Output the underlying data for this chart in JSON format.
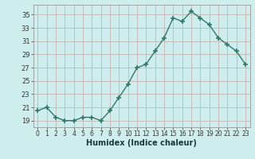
{
  "x": [
    0,
    1,
    2,
    3,
    4,
    5,
    6,
    7,
    8,
    9,
    10,
    11,
    12,
    13,
    14,
    15,
    16,
    17,
    18,
    19,
    20,
    21,
    22,
    23
  ],
  "y": [
    20.5,
    21.0,
    19.5,
    19.0,
    19.0,
    19.5,
    19.5,
    19.0,
    20.5,
    22.5,
    24.5,
    27.0,
    27.5,
    29.5,
    31.5,
    34.5,
    34.0,
    35.5,
    34.5,
    33.5,
    31.5,
    30.5,
    29.5,
    27.5
  ],
  "line_color": "#2d7a6e",
  "marker": "+",
  "markersize": 4,
  "markeredgewidth": 1.2,
  "linewidth": 1.0,
  "bg_color": "#ceeeed",
  "grid_major_color": "#b0c8c8",
  "grid_minor_color": "#d4b8b8",
  "xlabel": "Humidex (Indice chaleur)",
  "yticks": [
    19,
    21,
    23,
    25,
    27,
    29,
    31,
    33,
    35
  ],
  "ylim": [
    18.0,
    36.5
  ],
  "xlim": [
    -0.5,
    23.5
  ],
  "xlabel_fontsize": 7,
  "tick_fontsize": 5.5,
  "ytick_fontsize": 6
}
